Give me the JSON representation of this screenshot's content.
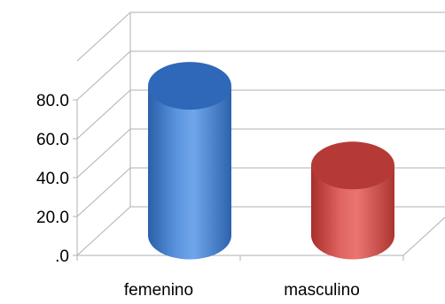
{
  "chart_data": {
    "type": "bar",
    "style": "3d-cylinder",
    "categories": [
      "femenino",
      "masculino"
    ],
    "values": [
      77.0,
      36.0
    ],
    "bar_colors": [
      "#4a7fd0",
      "#d54c47"
    ],
    "ylim": [
      0,
      100
    ],
    "yticks": [
      0,
      20,
      40,
      60,
      80
    ],
    "ytick_labels": [
      ".0",
      "20.0",
      "40.0",
      "60.0",
      "80.0"
    ],
    "gridlines": true,
    "grid_color": "#b0b0b0"
  }
}
